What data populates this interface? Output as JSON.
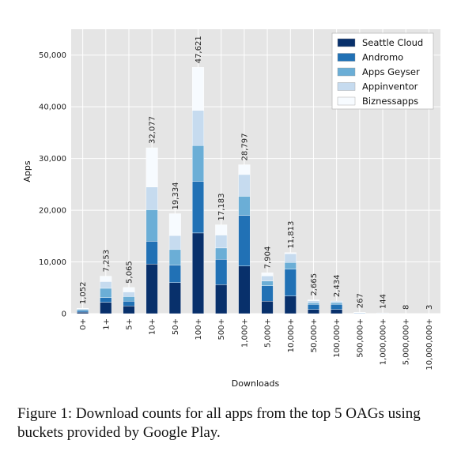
{
  "chart_data": {
    "type": "bar",
    "stacked": true,
    "xlabel": "Downloads",
    "ylabel": "Apps",
    "ylim": [
      0,
      55000
    ],
    "yticks": [
      0,
      10000,
      20000,
      30000,
      40000,
      50000
    ],
    "ytick_labels": [
      "0",
      "10,000",
      "20,000",
      "30,000",
      "40,000",
      "50,000"
    ],
    "grid": true,
    "legend_position": "top-right",
    "categories": [
      "0+",
      "1+",
      "5+",
      "10+",
      "50+",
      "100+",
      "500+",
      "1,000+",
      "5,000+",
      "10,000+",
      "50,000+",
      "100,000+",
      "500,000+",
      "1,000,000+",
      "5,000,000+",
      "10,000,000+"
    ],
    "totals": [
      1052,
      7253,
      5065,
      32077,
      19334,
      47621,
      17183,
      28797,
      7904,
      11813,
      2665,
      2434,
      267,
      144,
      8,
      3
    ],
    "total_labels": [
      "1,052",
      "7,253",
      "5,065",
      "32,077",
      "19,334",
      "47,621",
      "17,183",
      "28,797",
      "7,904",
      "11,813",
      "2,665",
      "2,434",
      "267",
      "144",
      "8",
      "3"
    ],
    "series": [
      {
        "name": "Seattle Cloud",
        "color": "#08306b",
        "values": [
          300,
          2200,
          1500,
          9600,
          6000,
          15600,
          5600,
          9200,
          2400,
          3400,
          800,
          800,
          0,
          0,
          0,
          0
        ]
      },
      {
        "name": "Andromo",
        "color": "#2171b5",
        "values": [
          300,
          900,
          900,
          4400,
          3400,
          10000,
          4900,
          9800,
          3000,
          5200,
          1000,
          1000,
          0,
          0,
          0,
          0
        ]
      },
      {
        "name": "Apps Geyser",
        "color": "#6baed6",
        "values": [
          200,
          1800,
          900,
          6100,
          3000,
          6900,
          2200,
          3700,
          900,
          1300,
          300,
          300,
          0,
          0,
          0,
          0
        ]
      },
      {
        "name": "Appinventor",
        "color": "#c6dbef",
        "values": [
          150,
          1300,
          900,
          4400,
          2700,
          6800,
          2500,
          4200,
          1000,
          1700,
          400,
          300,
          200,
          100,
          5,
          2
        ]
      },
      {
        "name": "Biznessapps",
        "color": "#f7fbff",
        "values": [
          102,
          1053,
          865,
          7577,
          4234,
          8321,
          1983,
          1897,
          604,
          213,
          165,
          34,
          67,
          44,
          3,
          1
        ]
      }
    ]
  },
  "caption": "Figure 1: Download counts for all apps from the top 5 OAGs using buckets provided by Google Play."
}
